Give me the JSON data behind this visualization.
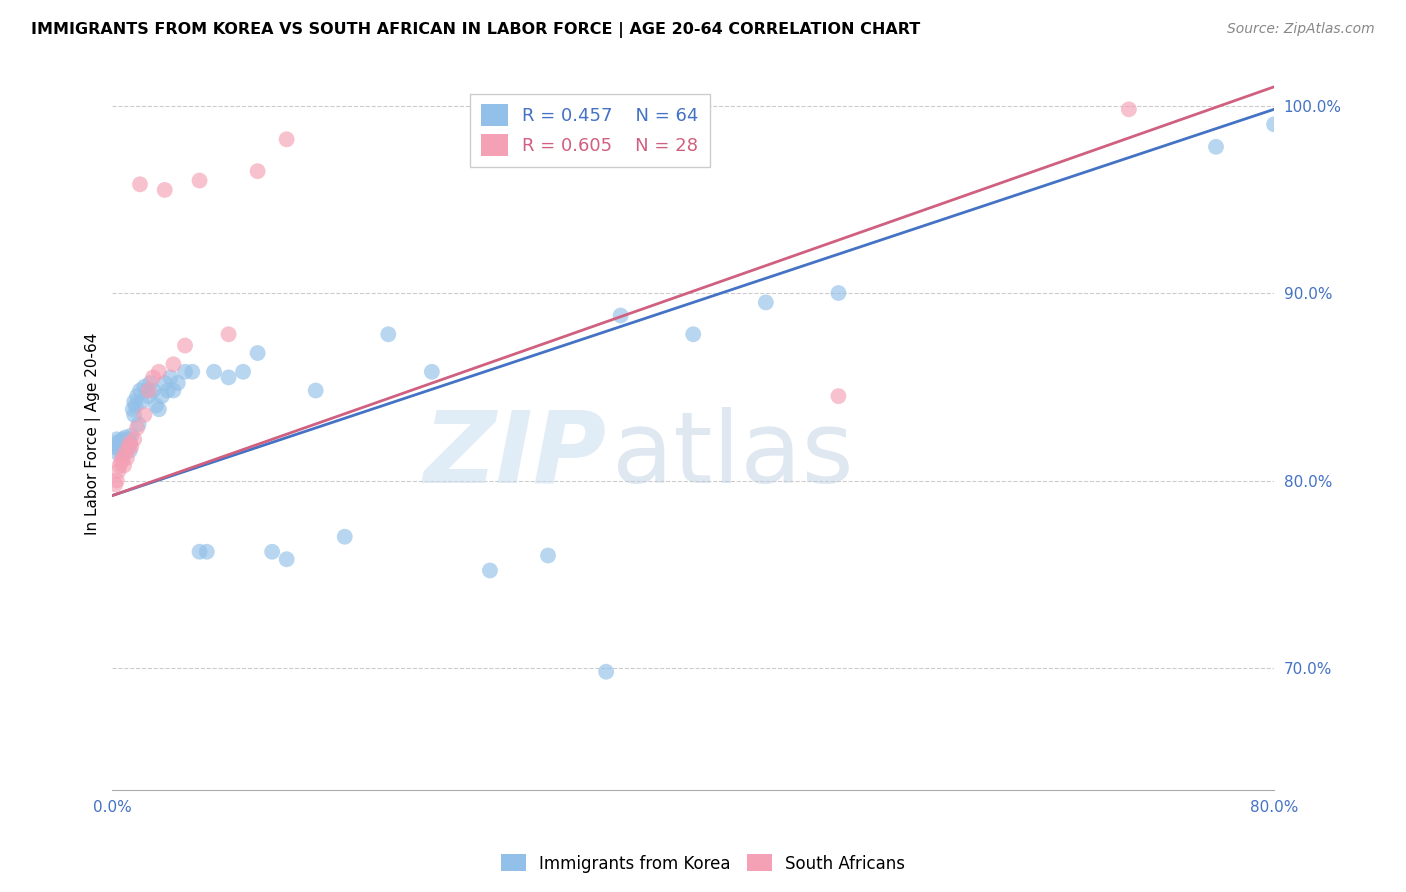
{
  "title": "IMMIGRANTS FROM KOREA VS SOUTH AFRICAN IN LABOR FORCE | AGE 20-64 CORRELATION CHART",
  "source": "Source: ZipAtlas.com",
  "ylabel": "In Labor Force | Age 20-64",
  "xlim": [
    0.0,
    0.8
  ],
  "ylim": [
    0.635,
    1.015
  ],
  "yticks_right": [
    0.7,
    0.8,
    0.9,
    1.0
  ],
  "ytick_labels_right": [
    "70.0%",
    "80.0%",
    "90.0%",
    "100.0%"
  ],
  "korea_R": 0.457,
  "korea_N": 64,
  "sa_R": 0.605,
  "sa_N": 28,
  "korea_color": "#92C0E8",
  "sa_color": "#F4A0B5",
  "korea_line_color": "#4472C4",
  "sa_line_color": "#D06080",
  "watermark_zip": "ZIP",
  "watermark_atlas": "atlas",
  "korea_x": [
    0.001,
    0.002,
    0.003,
    0.003,
    0.004,
    0.005,
    0.005,
    0.006,
    0.007,
    0.007,
    0.008,
    0.008,
    0.009,
    0.01,
    0.01,
    0.011,
    0.011,
    0.012,
    0.012,
    0.013,
    0.014,
    0.015,
    0.015,
    0.016,
    0.017,
    0.018,
    0.019,
    0.02,
    0.022,
    0.024,
    0.025,
    0.026,
    0.028,
    0.03,
    0.032,
    0.034,
    0.036,
    0.038,
    0.04,
    0.042,
    0.045,
    0.05,
    0.055,
    0.06,
    0.065,
    0.07,
    0.08,
    0.09,
    0.1,
    0.11,
    0.12,
    0.14,
    0.16,
    0.19,
    0.22,
    0.26,
    0.3,
    0.35,
    0.4,
    0.45,
    0.5,
    0.34,
    0.76,
    0.8
  ],
  "korea_y": [
    0.818,
    0.82,
    0.815,
    0.822,
    0.819,
    0.82,
    0.816,
    0.821,
    0.817,
    0.822,
    0.819,
    0.815,
    0.823,
    0.82,
    0.818,
    0.822,
    0.819,
    0.82,
    0.816,
    0.824,
    0.838,
    0.835,
    0.842,
    0.84,
    0.845,
    0.83,
    0.848,
    0.842,
    0.85,
    0.848,
    0.845,
    0.852,
    0.848,
    0.84,
    0.838,
    0.845,
    0.852,
    0.848,
    0.855,
    0.848,
    0.852,
    0.858,
    0.858,
    0.762,
    0.762,
    0.858,
    0.855,
    0.858,
    0.868,
    0.762,
    0.758,
    0.848,
    0.77,
    0.878,
    0.858,
    0.752,
    0.76,
    0.888,
    0.878,
    0.895,
    0.9,
    0.698,
    0.978,
    0.99
  ],
  "sa_x": [
    0.002,
    0.003,
    0.004,
    0.005,
    0.006,
    0.007,
    0.008,
    0.009,
    0.01,
    0.011,
    0.012,
    0.013,
    0.015,
    0.017,
    0.019,
    0.022,
    0.025,
    0.028,
    0.032,
    0.036,
    0.042,
    0.05,
    0.06,
    0.08,
    0.1,
    0.12,
    0.5,
    0.7
  ],
  "sa_y": [
    0.798,
    0.8,
    0.805,
    0.808,
    0.81,
    0.812,
    0.808,
    0.815,
    0.812,
    0.818,
    0.82,
    0.818,
    0.822,
    0.828,
    0.958,
    0.835,
    0.848,
    0.855,
    0.858,
    0.955,
    0.862,
    0.872,
    0.96,
    0.878,
    0.965,
    0.982,
    0.845,
    0.998
  ],
  "korea_line_x0": 0.0,
  "korea_line_y0": 0.792,
  "korea_line_x1": 0.8,
  "korea_line_y1": 0.998,
  "sa_line_x0": 0.0,
  "sa_line_y0": 0.792,
  "sa_line_x1": 0.8,
  "sa_line_y1": 1.01
}
